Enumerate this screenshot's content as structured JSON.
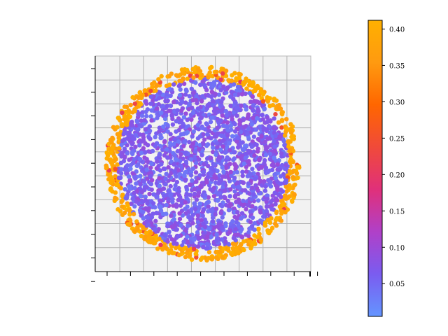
{
  "chart_data": {
    "type": "scatter",
    "title": "",
    "xlabel": "",
    "ylabel": "",
    "xlim": [
      0,
      1
    ],
    "ylim": [
      0,
      1
    ],
    "grid": true,
    "x_tick_labels": [],
    "y_tick_labels": [],
    "series": [
      {
        "description_of_distribution": null,
        "disk": {
          "center": [
            0.5,
            0.5
          ],
          "radius": 0.45
        },
        "interior_value": 0.03,
        "rim_value": 0.39,
        "rim_width_fraction": 0.12
      }
    ],
    "colorbar": {
      "min": 0.005,
      "max": 0.412,
      "ticks": [
        0.05,
        0.1,
        0.15,
        0.2,
        0.25,
        0.3,
        0.35,
        0.4
      ],
      "tick_labels": [
        "0.05",
        "0.10",
        "0.15",
        "0.20",
        "0.25",
        "0.30",
        "0.35",
        "0.40"
      ],
      "colormap": [
        "#6495ff",
        "#7a5cf0",
        "#b040c8",
        "#e0307a",
        "#f04a3a",
        "#ff6600",
        "#ff9a10",
        "#ffb000"
      ]
    },
    "colors": {
      "axes_background": "#f2f2f2",
      "grid": "#b0b0b0",
      "axis_line": "#000000"
    }
  }
}
